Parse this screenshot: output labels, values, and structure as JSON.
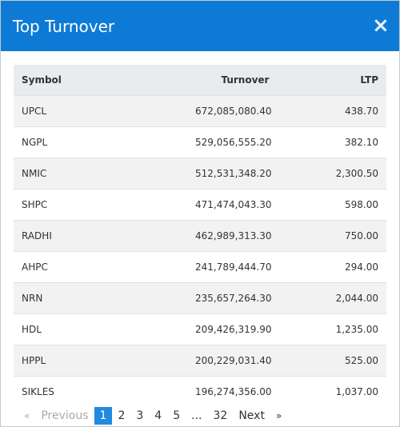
{
  "modal": {
    "title": "Top Turnover",
    "close_symbol": "×"
  },
  "table": {
    "headers": {
      "symbol": "Symbol",
      "turnover": "Turnover",
      "ltp": "LTP"
    },
    "rows": [
      {
        "symbol": "UPCL",
        "turnover": "672,085,080.40",
        "ltp": "438.70"
      },
      {
        "symbol": "NGPL",
        "turnover": "529,056,555.20",
        "ltp": "382.10"
      },
      {
        "symbol": "NMIC",
        "turnover": "512,531,348.20",
        "ltp": "2,300.50"
      },
      {
        "symbol": "SHPC",
        "turnover": "471,474,043.30",
        "ltp": "598.00"
      },
      {
        "symbol": "RADHI",
        "turnover": "462,989,313.30",
        "ltp": "750.00"
      },
      {
        "symbol": "AHPC",
        "turnover": "241,789,444.70",
        "ltp": "294.00"
      },
      {
        "symbol": "NRN",
        "turnover": "235,657,264.30",
        "ltp": "2,044.00"
      },
      {
        "symbol": "HDL",
        "turnover": "209,426,319.90",
        "ltp": "1,235.00"
      },
      {
        "symbol": "HPPL",
        "turnover": "200,229,031.40",
        "ltp": "525.00"
      },
      {
        "symbol": "SIKLES",
        "turnover": "196,274,356.00",
        "ltp": "1,037.00"
      }
    ]
  },
  "pagination": {
    "prev_arrow": "«",
    "previous": "Previous",
    "pages": [
      "1",
      "2",
      "3",
      "4",
      "5"
    ],
    "ellipsis": "...",
    "last_page": "32",
    "next": "Next",
    "next_arrow": "»",
    "active_page": "1"
  },
  "colors": {
    "header_bg": "#0d7bd6",
    "active_page_bg": "#1f8ae0",
    "stripe": "#f2f2f2",
    "thead_bg": "#e9ecef"
  }
}
